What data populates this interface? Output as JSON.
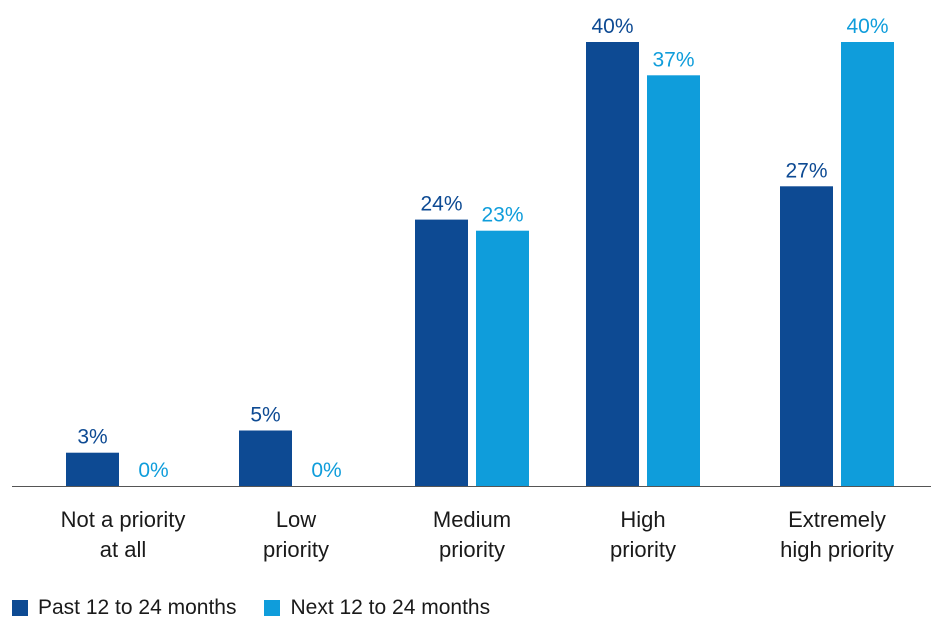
{
  "chart_data": {
    "type": "bar",
    "categories": [
      [
        "Not a priority",
        "at all"
      ],
      [
        "Low",
        "priority"
      ],
      [
        "Medium",
        "priority"
      ],
      [
        "High",
        "priority"
      ],
      [
        "Extremely",
        "high priority"
      ]
    ],
    "series": [
      {
        "name": "Past 12 to 24 months",
        "values": [
          3,
          5,
          24,
          40,
          27
        ],
        "labels": [
          "3%",
          "5%",
          "24%",
          "40%",
          "27%"
        ],
        "color": "#0d4a93"
      },
      {
        "name": "Next 12 to 24 months",
        "values": [
          0,
          0,
          23,
          37,
          40
        ],
        "labels": [
          "0%",
          "0%",
          "23%",
          "37%",
          "40%"
        ],
        "color": "#0f9ddb"
      }
    ],
    "ylim": [
      0,
      40
    ],
    "title": "",
    "xlabel": "",
    "ylabel": "",
    "grid": false,
    "legend_position": "bottom-left",
    "value_label_color": "#0d4a93",
    "axis_color": "#555555"
  }
}
